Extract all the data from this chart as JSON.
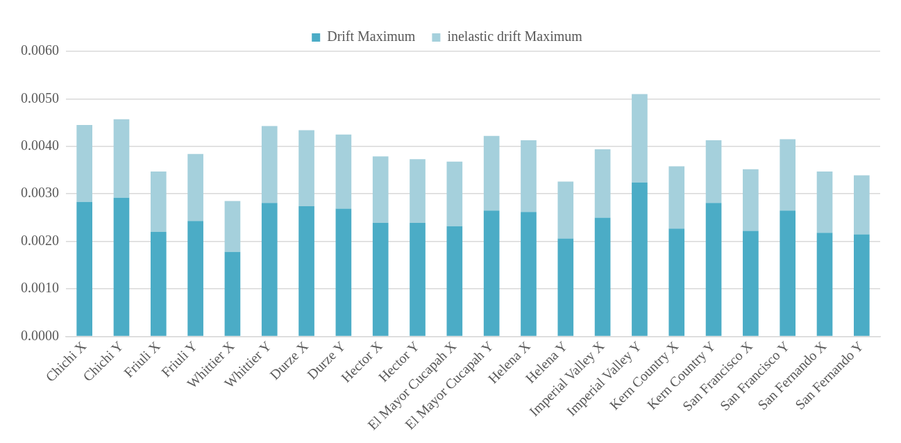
{
  "chart_data": {
    "type": "bar",
    "stacked": true,
    "categories": [
      "Chichi X",
      "Chichi Y",
      "Friuli X",
      "Friuli Y",
      "Whittier X",
      "Whittier Y",
      "Durze X",
      "Durze Y",
      "Hector X",
      "Hector Y",
      "El Mayor Cucapah X",
      "El Mayor Cucapah Y",
      "Helena X",
      "Helena Y",
      "Imperial Valley X",
      "Imperial Valley Y",
      "Kern Country X",
      "Kern Country Y",
      "San Francisco X",
      "San Francisco Y",
      "San Fernando X",
      "San Fernando Y"
    ],
    "series": [
      {
        "name": "Drift Maximum",
        "color": "#4bacc6",
        "values": [
          0.00283,
          0.00292,
          0.0022,
          0.00243,
          0.00178,
          0.00281,
          0.00274,
          0.00269,
          0.00239,
          0.00239,
          0.00232,
          0.00265,
          0.00262,
          0.00206,
          0.0025,
          0.00324,
          0.00227,
          0.00281,
          0.00222,
          0.00265,
          0.00218,
          0.00215
        ]
      },
      {
        "name": "inelastic drift Maximum",
        "color": "#a5d0dc",
        "values": [
          0.00162,
          0.00165,
          0.00127,
          0.00141,
          0.00107,
          0.00162,
          0.0016,
          0.00156,
          0.0014,
          0.00134,
          0.00136,
          0.00157,
          0.00151,
          0.0012,
          0.00144,
          0.00186,
          0.00131,
          0.00132,
          0.0013,
          0.0015,
          0.00129,
          0.00124
        ]
      }
    ],
    "ylim": [
      0,
      0.006
    ],
    "yticks": [
      {
        "value": 0,
        "label": "0.0000"
      },
      {
        "value": 0.001,
        "label": "0.0010"
      },
      {
        "value": 0.002,
        "label": "0.0020"
      },
      {
        "value": 0.003,
        "label": "0.0030"
      },
      {
        "value": 0.004,
        "label": "0.0040"
      },
      {
        "value": 0.005,
        "label": "0.0050"
      },
      {
        "value": 0.006,
        "label": "0.0060"
      }
    ],
    "grid": "y",
    "legend": "top"
  }
}
